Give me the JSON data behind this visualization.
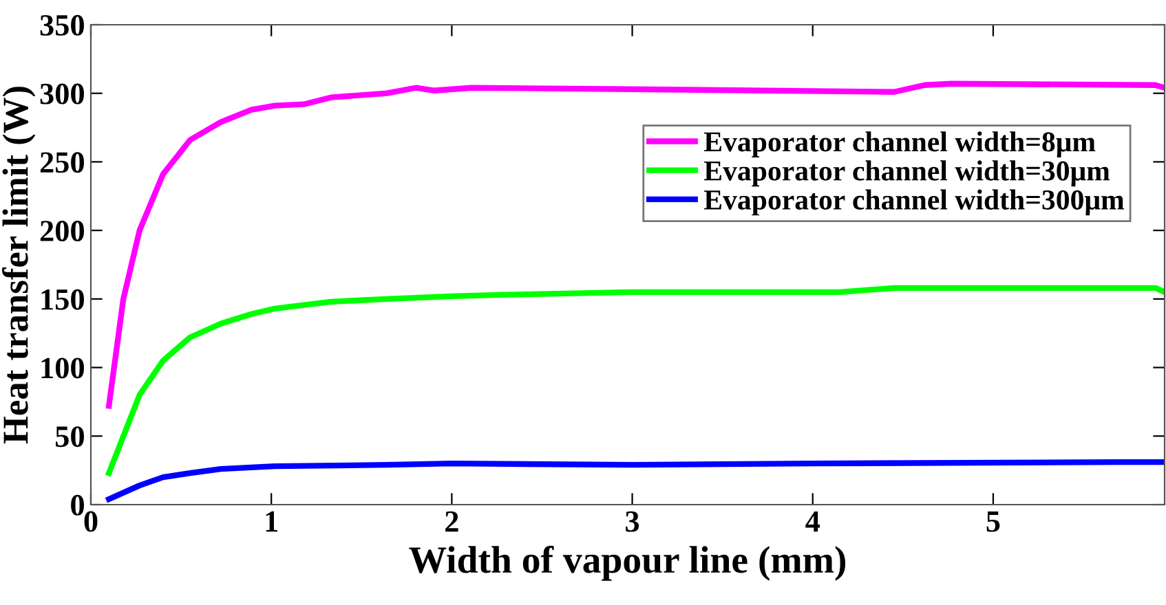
{
  "chart_data": {
    "type": "line",
    "xlabel": "Width of vapour line (mm)",
    "ylabel": "Heat transfer limit (W)",
    "xlim": [
      0,
      5.95
    ],
    "xticks": [
      0,
      1,
      2,
      3,
      4,
      5
    ],
    "ylim": [
      0,
      350
    ],
    "yticks": [
      0,
      50,
      100,
      150,
      200,
      250,
      300,
      350
    ],
    "grid": false,
    "legend": "top right",
    "line_style": "solid",
    "series": [
      {
        "name": "Evaporator channel width=8μm",
        "color": "#ff00ff",
        "x": [
          0.1,
          0.18,
          0.27,
          0.4,
          0.55,
          0.72,
          0.89,
          1.02,
          1.18,
          1.33,
          1.64,
          1.8,
          1.9,
          2.11,
          3.0,
          4.45,
          4.62,
          4.77,
          5.9,
          5.95
        ],
        "values": [
          72,
          150,
          200,
          241,
          266,
          279,
          288,
          291,
          292,
          297,
          300,
          304,
          302,
          304,
          303,
          301,
          306,
          307,
          306,
          304
        ]
      },
      {
        "name": "Evaporator channel width=30μm",
        "color": "#00ff00",
        "x": [
          0.1,
          0.27,
          0.4,
          0.55,
          0.72,
          0.89,
          1.02,
          1.33,
          1.64,
          2.0,
          2.27,
          3.0,
          4.15,
          4.45,
          5.9,
          5.95
        ],
        "values": [
          23,
          80,
          105,
          122,
          132,
          139,
          143,
          148,
          150,
          152,
          153,
          155,
          155,
          158,
          158,
          155
        ]
      },
      {
        "name": "Evaporator channel width=300μm",
        "color": "#0000ff",
        "x": [
          0.1,
          0.27,
          0.4,
          0.55,
          0.72,
          1.02,
          1.64,
          2.0,
          3.0,
          4.0,
          5.7,
          5.95
        ],
        "values": [
          4,
          14,
          20,
          23,
          26,
          28,
          29,
          30,
          29,
          30,
          31,
          31
        ]
      }
    ]
  }
}
